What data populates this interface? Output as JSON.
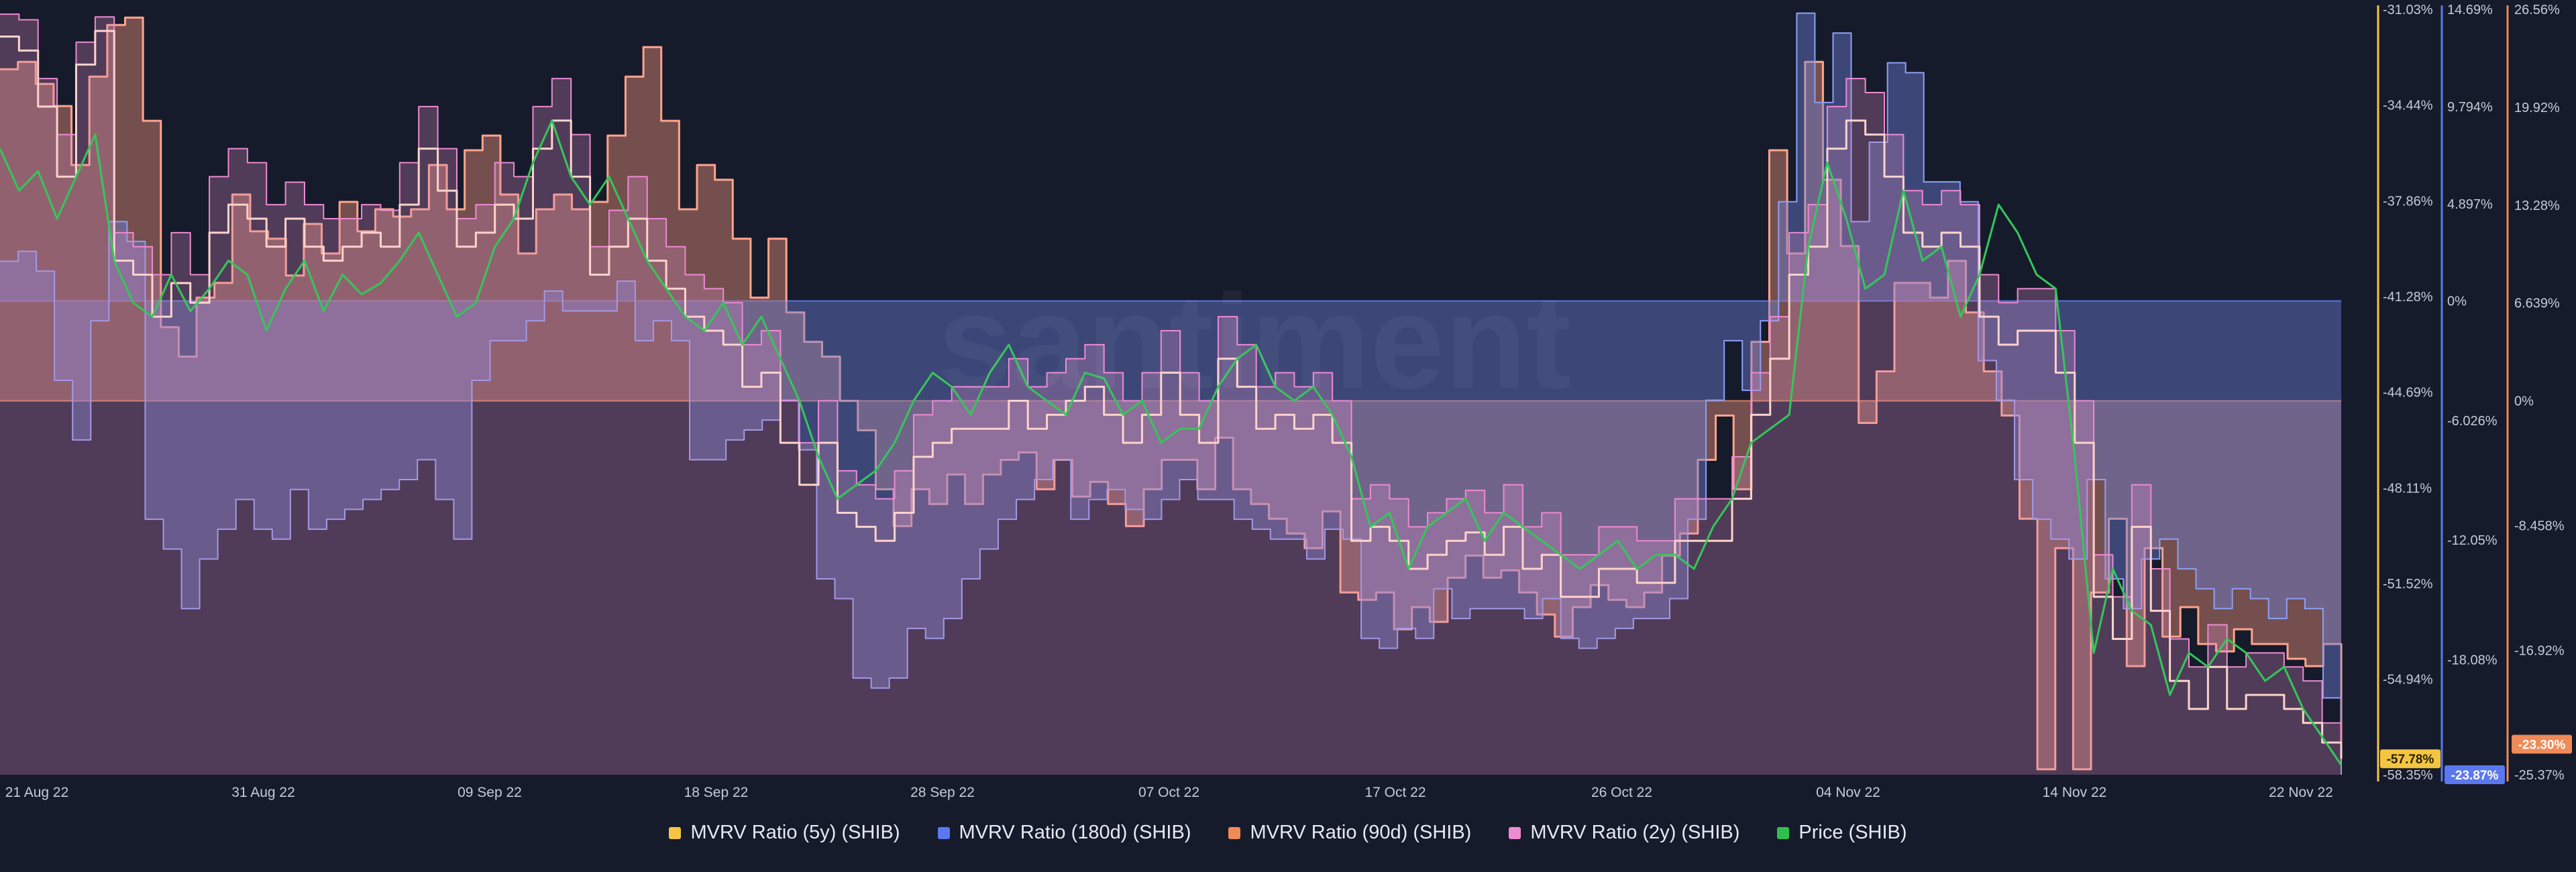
{
  "colors": {
    "background": "#161b2b",
    "mvrv_5y": "#f4c542",
    "mvrv_180d": "#5b78ee",
    "mvrv_90d": "#f08a57",
    "mvrv_2y": "#ee8ad2",
    "price": "#2fbf4f",
    "watermark": "santiment"
  },
  "watermark": "santiment",
  "legend": [
    {
      "label": "MVRV Ratio (5y) (SHIB)",
      "color": "#f4c542"
    },
    {
      "label": "MVRV Ratio (180d) (SHIB)",
      "color": "#5b78ee"
    },
    {
      "label": "MVRV Ratio (90d) (SHIB)",
      "color": "#f08a57"
    },
    {
      "label": "MVRV Ratio (2y) (SHIB)",
      "color": "#ee8ad2"
    },
    {
      "label": "Price (SHIB)",
      "color": "#2fbf4f"
    }
  ],
  "chart_data": {
    "type": "area",
    "x_tick_labels": [
      "21 Aug 22",
      "31 Aug 22",
      "09 Sep 22",
      "18 Sep 22",
      "28 Sep 22",
      "07 Oct 22",
      "17 Oct 22",
      "26 Oct 22",
      "04 Nov 22",
      "14 Nov 22",
      "22 Nov 22"
    ],
    "axes": [
      {
        "id": "mvrv_5y",
        "color": "#f4c542",
        "ylim": [
          -58.35,
          -31.03
        ],
        "tick_labels": [
          "-31.03%",
          "-34.44%",
          "-37.86%",
          "-41.28%",
          "-44.69%",
          "-48.11%",
          "-51.52%",
          "-54.94%",
          "-58.35%"
        ],
        "current_label": "-57.78%",
        "current_value": -57.78
      },
      {
        "id": "mvrv_180d",
        "color": "#5b78ee",
        "ylim": [
          -23.87,
          14.69
        ],
        "tick_labels": [
          "14.69%",
          "9.794%",
          "4.897%",
          "0%",
          "-6.026%",
          "-12.05%",
          "-18.08%"
        ],
        "current_label": "-23.87%",
        "current_value": -23.87,
        "zero_line": 0
      },
      {
        "id": "mvrv_90d",
        "color": "#f08a57",
        "ylim": [
          -25.37,
          26.56
        ],
        "tick_labels": [
          "26.56%",
          "19.92%",
          "13.28%",
          "6.639%",
          "0%",
          "-8.458%",
          "-16.92%",
          "-25.37%"
        ],
        "current_label": "-23.30%",
        "current_value": -23.3,
        "zero_line": 0
      }
    ],
    "series": [
      {
        "name": "MVRV Ratio (90d) (SHIB)",
        "axis": "mvrv_90d",
        "values": [
          22.5,
          23.0,
          21.5,
          20.0,
          16.0,
          22.0,
          25.5,
          26.0,
          19.0,
          5.0,
          3.0,
          7.0,
          8.0,
          14.0,
          11.5,
          11.0,
          8.5,
          12.0,
          10.0,
          13.5,
          11.5,
          13.0,
          12.5,
          13.0,
          16.0,
          13.0,
          17.0,
          18.0,
          14.0,
          10.0,
          13.0,
          14.0,
          13.0,
          13.5,
          18.0,
          22.0,
          24.0,
          19.0,
          13.0,
          16.0,
          15.0,
          11.0,
          7.0,
          11.0,
          6.0,
          4.0,
          3.0,
          0.0,
          -2.0,
          -6.0,
          -8.5,
          -6.0,
          -7.0,
          -5.0,
          -7.0,
          -5.0,
          -4.0,
          -3.5,
          -6.0,
          -4.0,
          -6.5,
          -5.5,
          -7.0,
          -8.5,
          -6.0,
          -4.0,
          -4.0,
          -6.0,
          -2.5,
          -6.0,
          -7.0,
          -8.0,
          -9.0,
          -10.0,
          -7.5,
          -13.0,
          -13.5,
          -13.0,
          -15.5,
          -14.0,
          -15.0,
          -12.0,
          -10.5,
          -12.0,
          -11.5,
          -13.0,
          -14.5,
          -16.0,
          -14.0,
          -12.5,
          -13.5,
          -14.0,
          -13.0,
          -10.5,
          -9.0,
          -4.0,
          -1.0,
          -6.0,
          4.0,
          17.0,
          10.0,
          23.0,
          15.0,
          10.5,
          -1.5,
          2.0,
          8.0,
          8.0,
          7.0,
          9.5,
          6.0,
          2.0,
          -1.0,
          -8.0,
          -25.0,
          -10.0,
          -25.0,
          -13.0,
          -8.0,
          -18.0,
          -10.0,
          -16.0,
          -14.0,
          -16.5,
          -17.0,
          -15.5,
          -16.5,
          -16.5,
          -17.5,
          -18.0,
          -16.5,
          -23.3
        ]
      },
      {
        "name": "MVRV Ratio (180d) (SHIB)",
        "axis": "mvrv_180d",
        "values": [
          2.0,
          2.5,
          1.5,
          -4.0,
          -7.0,
          -1.0,
          4.0,
          3.0,
          -11.0,
          -12.5,
          -15.5,
          -13.0,
          -11.5,
          -10.0,
          -11.5,
          -12.0,
          -9.5,
          -11.5,
          -11.0,
          -10.5,
          -10.0,
          -9.5,
          -9.0,
          -8.0,
          -10.0,
          -12.0,
          -4.0,
          -2.0,
          -2.0,
          -1.0,
          0.5,
          -0.5,
          -0.5,
          -0.5,
          1.0,
          -2.0,
          -1.0,
          -2.0,
          -8.0,
          -8.0,
          -7.0,
          -6.5,
          -6.0,
          -5.0,
          -7.5,
          -14.0,
          -15.0,
          -19.0,
          -19.5,
          -19.0,
          -16.5,
          -17.0,
          -16.0,
          -14.0,
          -12.5,
          -11.0,
          -10.0,
          -9.0,
          -8.0,
          -11.0,
          -10.0,
          -9.5,
          -10.5,
          -11.0,
          -10.0,
          -9.0,
          -10.0,
          -10.0,
          -11.0,
          -11.5,
          -12.0,
          -12.0,
          -13.0,
          -11.5,
          -12.0,
          -17.0,
          -17.5,
          -16.5,
          -17.0,
          -14.5,
          -16.0,
          -15.5,
          -15.5,
          -15.5,
          -16.0,
          -15.0,
          -17.0,
          -17.5,
          -17.0,
          -16.5,
          -16.0,
          -16.0,
          -15.0,
          -11.0,
          -5.0,
          -2.0,
          -4.5,
          -1.0,
          5.0,
          14.5,
          10.0,
          13.5,
          4.0,
          8.0,
          12.0,
          11.5,
          6.0,
          6.0,
          5.0,
          -3.0,
          -5.0,
          -9.0,
          -11.0,
          -12.0,
          -13.0,
          -9.0,
          -14.0,
          -15.5,
          -13.0,
          -12.0,
          -13.5,
          -14.5,
          -15.5,
          -14.5,
          -15.0,
          -16.0,
          -15.0,
          -15.5,
          -20.0,
          -23.87
        ]
      },
      {
        "name": "MVRV Ratio (2y) (SHIB)",
        "axis": "mvrv_5y",
        "values": [
          -31.2,
          -31.4,
          -33.5,
          -35.5,
          -32.2,
          -31.3,
          -39.0,
          -39.5,
          -40.5,
          -39.0,
          -40.5,
          -37.0,
          -36.0,
          -36.5,
          -38.0,
          -37.2,
          -38.0,
          -38.5,
          -38.5,
          -38.0,
          -38.2,
          -36.5,
          -34.5,
          -36.0,
          -38.5,
          -38.0,
          -36.5,
          -37.0,
          -34.5,
          -33.5,
          -35.5,
          -39.5,
          -38.2,
          -37.0,
          -38.5,
          -39.5,
          -40.5,
          -41.0,
          -41.5,
          -43.0,
          -42.5,
          -45.0,
          -46.5,
          -45.0,
          -47.5,
          -48.0,
          -48.5,
          -47.5,
          -45.5,
          -45.0,
          -44.5,
          -44.5,
          -44.5,
          -43.5,
          -44.5,
          -44.0,
          -43.5,
          -43.0,
          -44.0,
          -45.0,
          -44.0,
          -42.5,
          -44.0,
          -45.0,
          -42.0,
          -43.0,
          -44.5,
          -44.0,
          -44.5,
          -44.0,
          -45.0,
          -48.5,
          -48.0,
          -48.5,
          -49.5,
          -49.0,
          -48.5,
          -48.2,
          -49.0,
          -48.0,
          -49.5,
          -49.0,
          -50.5,
          -50.5,
          -49.5,
          -49.5,
          -50.0,
          -50.0,
          -48.5,
          -48.5,
          -48.5,
          -47.0,
          -44.0,
          -42.0,
          -39.0,
          -38.0,
          -34.5,
          -33.5,
          -34.0,
          -35.5,
          -37.5,
          -38.0,
          -37.5,
          -38.0,
          -40.5,
          -41.5,
          -41.0,
          -41.0,
          -42.5,
          -45.0,
          -50.5,
          -52.0,
          -48.0,
          -51.0,
          -53.5,
          -54.5,
          -53.0,
          -54.5,
          -54.0,
          -54.0,
          -54.5,
          -55.0,
          -56.5,
          -58.0
        ]
      },
      {
        "name": "MVRV Ratio (5y) (SHIB)",
        "axis": "mvrv_5y",
        "values": [
          -32.0,
          -32.5,
          -34.5,
          -37.0,
          -33.0,
          -31.8,
          -40.0,
          -40.5,
          -42.0,
          -40.8,
          -41.5,
          -39.0,
          -38.0,
          -38.5,
          -39.5,
          -38.5,
          -39.5,
          -40.0,
          -39.5,
          -39.0,
          -39.5,
          -38.0,
          -36.0,
          -37.5,
          -39.5,
          -39.0,
          -38.0,
          -38.5,
          -36.0,
          -35.0,
          -37.0,
          -40.5,
          -39.5,
          -38.5,
          -40.0,
          -41.0,
          -42.0,
          -42.5,
          -43.0,
          -44.5,
          -44.0,
          -46.5,
          -48.0,
          -46.5,
          -49.0,
          -49.5,
          -50.0,
          -49.0,
          -47.0,
          -46.5,
          -46.0,
          -46.0,
          -46.0,
          -45.0,
          -46.0,
          -45.5,
          -45.0,
          -44.5,
          -45.5,
          -46.5,
          -45.5,
          -44.0,
          -45.5,
          -46.5,
          -43.5,
          -44.5,
          -46.0,
          -45.5,
          -46.0,
          -45.5,
          -46.5,
          -50.0,
          -49.5,
          -50.0,
          -51.0,
          -50.5,
          -50.0,
          -49.7,
          -50.5,
          -49.5,
          -51.0,
          -50.5,
          -52.0,
          -52.0,
          -51.0,
          -51.0,
          -51.5,
          -51.5,
          -50.0,
          -50.0,
          -50.0,
          -48.5,
          -45.5,
          -43.5,
          -40.5,
          -39.5,
          -36.0,
          -35.0,
          -35.5,
          -37.0,
          -39.0,
          -39.5,
          -39.0,
          -39.5,
          -42.0,
          -43.0,
          -42.5,
          -42.5,
          -44.0,
          -46.5,
          -52.0,
          -53.5,
          -49.5,
          -52.5,
          -55.0,
          -56.0,
          -54.5,
          -56.0,
          -55.5,
          -55.5,
          -56.0,
          -56.5,
          -57.2,
          -57.78
        ]
      },
      {
        "name": "Price (SHIB)",
        "axis": "mvrv_5y",
        "values": [
          -36.0,
          -37.5,
          -36.8,
          -38.5,
          -37.0,
          -35.5,
          -40.0,
          -41.5,
          -42.0,
          -40.5,
          -41.8,
          -41.0,
          -40.0,
          -40.5,
          -42.5,
          -41.0,
          -40.0,
          -41.8,
          -40.5,
          -41.2,
          -40.8,
          -40.0,
          -39.0,
          -40.5,
          -42.0,
          -41.5,
          -39.5,
          -38.5,
          -36.5,
          -35.0,
          -37.0,
          -38.0,
          -37.0,
          -38.5,
          -40.0,
          -41.0,
          -42.0,
          -42.5,
          -41.5,
          -43.0,
          -42.0,
          -43.5,
          -45.0,
          -47.0,
          -48.5,
          -48.0,
          -47.5,
          -46.5,
          -45.0,
          -44.0,
          -44.5,
          -45.5,
          -44.0,
          -43.0,
          -44.5,
          -45.0,
          -45.5,
          -44.0,
          -44.2,
          -45.5,
          -45.0,
          -46.5,
          -46.0,
          -46.0,
          -44.5,
          -43.5,
          -43.0,
          -44.5,
          -45.0,
          -44.5,
          -45.5,
          -47.0,
          -49.5,
          -49.0,
          -51.0,
          -49.5,
          -49.0,
          -48.5,
          -50.0,
          -49.0,
          -49.5,
          -50.0,
          -50.5,
          -51.0,
          -50.5,
          -50.0,
          -51.0,
          -50.5,
          -50.5,
          -51.0,
          -49.5,
          -48.5,
          -46.5,
          -46.0,
          -45.5,
          -39.5,
          -36.5,
          -38.5,
          -41.0,
          -40.5,
          -37.5,
          -40.0,
          -39.5,
          -42.0,
          -40.5,
          -38.0,
          -39.0,
          -40.5,
          -41.0,
          -47.0,
          -54.0,
          -51.0,
          -52.5,
          -53.0,
          -55.5,
          -54.0,
          -54.5,
          -53.5,
          -54.0,
          -55.0,
          -54.5,
          -56.0,
          -57.0,
          -58.0
        ]
      }
    ],
    "grid": false,
    "legend_position": "bottom"
  }
}
